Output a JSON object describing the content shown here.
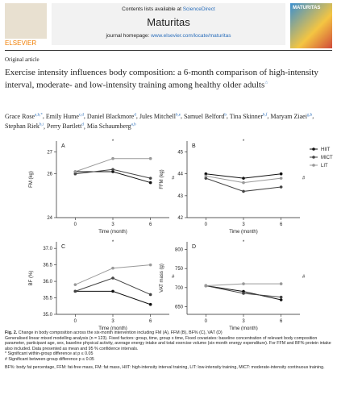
{
  "header": {
    "contents": "Contents lists available at",
    "sciencedirect": "ScienceDirect",
    "journal": "Maturitas",
    "homepage": "journal homepage:",
    "url": "www.elsevier.com/locate/maturitas",
    "publisher": "ELSEVIER",
    "cover_title": "MATURITAS"
  },
  "article_type": "Original article",
  "title": "Exercise intensity influences body composition: a 6-month comparison of high-intensity interval, moderate- and low-intensity training among healthy older adults",
  "title_mark": "☆",
  "authors": [
    {
      "name": "Grace Rose",
      "aff": "a,b,*"
    },
    {
      "name": "Emily Hume",
      "aff": "c,d"
    },
    {
      "name": "Daniel Blackmore",
      "aff": "d"
    },
    {
      "name": "Jules Mitchell",
      "aff": "b,e"
    },
    {
      "name": "Samuel Belford",
      "aff": "b"
    },
    {
      "name": "Tina Skinner",
      "aff": "b,f"
    },
    {
      "name": "Maryam Ziaei",
      "aff": "g,h"
    },
    {
      "name": "Stephan Riek",
      "aff": "b,i"
    },
    {
      "name": "Perry Bartlett",
      "aff": "d"
    },
    {
      "name": "Mia Schaumberg",
      "aff": "a,b"
    }
  ],
  "chart_data": [
    {
      "type": "line",
      "panel": "A",
      "ylabel": "FM (kg)",
      "xlabel": "Time (month)",
      "x": [
        0,
        3,
        6
      ],
      "xlim": [
        -1.5,
        7.5
      ],
      "xticks": [
        0,
        3,
        6
      ],
      "ylim": [
        24,
        27.5
      ],
      "yticks": [
        24,
        26,
        27
      ],
      "annotations": [
        "*",
        "#"
      ],
      "series": [
        {
          "name": "HIIT",
          "color": "#111111",
          "values": [
            26.1,
            26.1,
            25.6
          ]
        },
        {
          "name": "MICT",
          "color": "#444444",
          "values": [
            26.0,
            26.2,
            25.8
          ]
        },
        {
          "name": "LIT",
          "color": "#999999",
          "values": [
            26.1,
            26.7,
            26.7
          ]
        }
      ]
    },
    {
      "type": "line",
      "panel": "B",
      "ylabel": "FFM (kg)",
      "xlabel": "Time (month)",
      "x": [
        0,
        3,
        6
      ],
      "xlim": [
        -1.5,
        7.5
      ],
      "xticks": [
        0,
        3,
        6
      ],
      "ylim": [
        42,
        45.5
      ],
      "yticks": [
        42,
        43,
        44,
        45
      ],
      "annotations": [
        "*",
        "#"
      ],
      "legend": "right",
      "series": [
        {
          "name": "HIIT",
          "color": "#111111",
          "values": [
            44.0,
            43.8,
            44.0
          ]
        },
        {
          "name": "MICT",
          "color": "#444444",
          "values": [
            43.8,
            43.2,
            43.4
          ]
        },
        {
          "name": "LIT",
          "color": "#999999",
          "values": [
            43.9,
            43.6,
            43.8
          ]
        }
      ]
    },
    {
      "type": "line",
      "panel": "C",
      "ylabel": "BF (%)",
      "xlabel": "Time (month)",
      "x": [
        0,
        3,
        6
      ],
      "xlim": [
        -1.5,
        7.5
      ],
      "xticks": [
        0,
        3,
        6
      ],
      "ylim": [
        35,
        37.2
      ],
      "yticks": [
        {
          "value": 35,
          "label": "35.0"
        },
        35.5,
        {
          "value": 36,
          "label": "36.0"
        },
        36.5,
        {
          "value": 37,
          "label": "37.0"
        }
      ],
      "annotations": [
        "*",
        "#"
      ],
      "series": [
        {
          "name": "HIIT",
          "color": "#111111",
          "values": [
            35.7,
            35.7,
            35.3
          ]
        },
        {
          "name": "MICT",
          "color": "#444444",
          "values": [
            35.7,
            36.1,
            35.6
          ]
        },
        {
          "name": "LIT",
          "color": "#999999",
          "values": [
            35.9,
            36.4,
            36.5
          ]
        }
      ]
    },
    {
      "type": "line",
      "panel": "D",
      "ylabel": "VAT mass (g)",
      "xlabel": "Time (month)",
      "x": [
        0,
        3,
        6
      ],
      "xlim": [
        -1.5,
        7.5
      ],
      "xticks": [
        0,
        3,
        6
      ],
      "ylim": [
        630,
        820
      ],
      "yticks": [
        650,
        700,
        750,
        800
      ],
      "annotations": [
        "*",
        "#"
      ],
      "series": [
        {
          "name": "HIIT",
          "color": "#111111",
          "values": [
            705,
            690,
            668
          ]
        },
        {
          "name": "MICT",
          "color": "#444444",
          "values": [
            705,
            685,
            675
          ]
        },
        {
          "name": "LIT",
          "color": "#999999",
          "values": [
            705,
            710,
            710
          ]
        }
      ]
    }
  ],
  "caption": {
    "label": "Fig. 2.",
    "text": "Change in body composition across the six-month intervention including FM (A), FFM (B), BF% (C), VAT (D)",
    "lines": [
      "Generalised linear mixed modelling analysis (n = 123). Fixed factors: group, time, group x time, Fixed covariates: baseline concentration of relevant body composition parameter, participant age, sex, baseline physical activity, average energy intake and total exercise volume (six-month energy expenditure). For FFM and BF% protein intake also included. Data presented as mean and 95 % confidence intervals.",
      "* Significant within-group difference at p ≤ 0.05",
      "# Significant between-group difference p ≤ 0.05",
      "BF%: body fat percentage, FFM: fat-free mass, FM: fat mass, HIIT: high-intensity interval training, LIT: low-intensity training, MICT: moderate-intensity continuous training."
    ]
  }
}
